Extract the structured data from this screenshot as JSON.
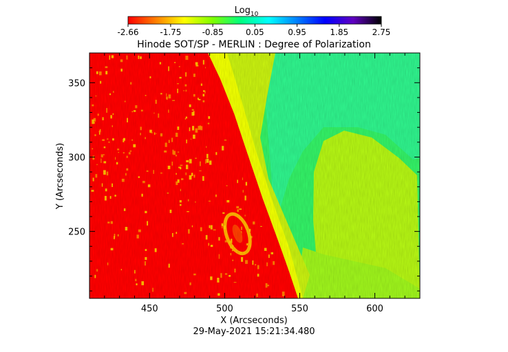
{
  "chart_data": {
    "type": "heatmap",
    "title": "Hinode SOT/SP - MERLIN : Degree of Polarization",
    "xlabel": "X (Arcseconds)",
    "ylabel": "Y (Arcseconds)",
    "xlim": [
      410,
      630
    ],
    "ylim": [
      205,
      370
    ],
    "x_ticks": [
      450,
      500,
      550,
      600
    ],
    "y_ticks": [
      250,
      300,
      350
    ],
    "x_tick_labels": [
      "450",
      "500",
      "550",
      "600"
    ],
    "y_tick_labels": [
      "250",
      "300",
      "350"
    ],
    "colorbar": {
      "label": "Log",
      "label_subscript": "10",
      "min": -2.66,
      "max": 2.75,
      "tick_values": [
        -2.66,
        -1.75,
        -0.85,
        0.05,
        0.95,
        1.85,
        2.75
      ],
      "tick_labels": [
        "-2.66",
        "-1.75",
        "-0.85",
        "0.05",
        "0.95",
        "1.85",
        "2.75"
      ],
      "colors": [
        "#ff0000",
        "#ff8000",
        "#ffff00",
        "#80ff00",
        "#00ff80",
        "#00ffff",
        "#0080ff",
        "#0000ff",
        "#6000c0",
        "#000000"
      ]
    },
    "limb": {
      "description_points": [
        [
          490,
          370
        ],
        [
          520,
          300
        ],
        [
          535,
          250
        ],
        [
          548,
          205
        ]
      ]
    },
    "footer": "29-May-2021 15:21:34.480"
  }
}
